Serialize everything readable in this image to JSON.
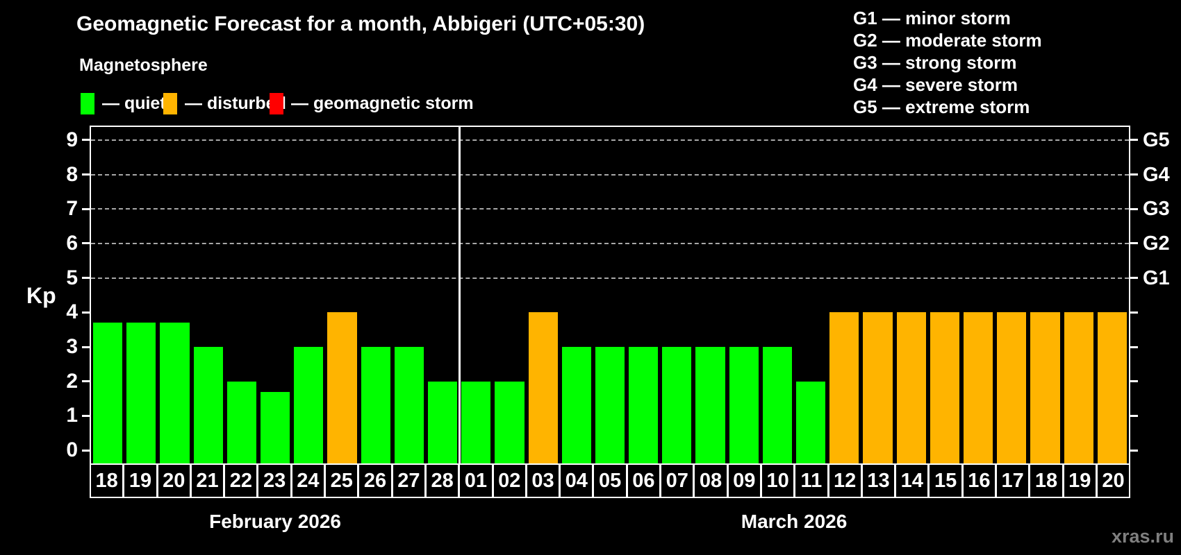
{
  "title": "Geomagnetic Forecast for a month, Abbigeri (UTC+05:30)",
  "subtitle": "Magnetosphere",
  "legend": {
    "items": [
      {
        "key": "quiet",
        "label": "— quiet",
        "color": "#00ff00"
      },
      {
        "key": "disturbed",
        "label": "— disturbed",
        "color": "#ffb400"
      },
      {
        "key": "storm",
        "label": "— geomagnetic storm",
        "color": "#ff0000"
      }
    ]
  },
  "storm_scale_legend": [
    "G1 — minor storm",
    "G2 — moderate storm",
    "G3 — strong storm",
    "G4 — severe storm",
    "G5 — extreme storm"
  ],
  "y_axis": {
    "label": "Kp",
    "ticks": [
      0,
      1,
      2,
      3,
      4,
      5,
      6,
      7,
      8,
      9
    ]
  },
  "right_axis": {
    "labels": [
      {
        "text": "G1",
        "kp": 5
      },
      {
        "text": "G2",
        "kp": 6
      },
      {
        "text": "G3",
        "kp": 7
      },
      {
        "text": "G4",
        "kp": 8
      },
      {
        "text": "G5",
        "kp": 9
      }
    ]
  },
  "watermark": "xras.ru",
  "chart_data": {
    "type": "bar",
    "title": "Geomagnetic Forecast for a month, Abbigeri (UTC+05:30)",
    "xlabel": "",
    "ylabel": "Kp",
    "ylim": [
      0,
      9.4
    ],
    "grid": "horizontal dashed lines at Kp 5,6,7,8,9 (storm levels G1-G5)",
    "legend_position": "top-left (status colors), top-right (G-scale definitions)",
    "status_colors": {
      "quiet": "#00ff00",
      "disturbed": "#ffb400",
      "storm": "#ff0000"
    },
    "months": [
      {
        "label": "February 2026",
        "bars": [
          {
            "day": "18",
            "kp": 3.7,
            "status": "quiet"
          },
          {
            "day": "19",
            "kp": 3.7,
            "status": "quiet"
          },
          {
            "day": "20",
            "kp": 3.7,
            "status": "quiet"
          },
          {
            "day": "21",
            "kp": 3.0,
            "status": "quiet"
          },
          {
            "day": "22",
            "kp": 2.0,
            "status": "quiet"
          },
          {
            "day": "23",
            "kp": 1.7,
            "status": "quiet"
          },
          {
            "day": "24",
            "kp": 3.0,
            "status": "quiet"
          },
          {
            "day": "25",
            "kp": 4.0,
            "status": "disturbed"
          },
          {
            "day": "26",
            "kp": 3.0,
            "status": "quiet"
          },
          {
            "day": "27",
            "kp": 3.0,
            "status": "quiet"
          },
          {
            "day": "28",
            "kp": 2.0,
            "status": "quiet"
          }
        ]
      },
      {
        "label": "March 2026",
        "bars": [
          {
            "day": "01",
            "kp": 2.0,
            "status": "quiet"
          },
          {
            "day": "02",
            "kp": 2.0,
            "status": "quiet"
          },
          {
            "day": "03",
            "kp": 4.0,
            "status": "disturbed"
          },
          {
            "day": "04",
            "kp": 3.0,
            "status": "quiet"
          },
          {
            "day": "05",
            "kp": 3.0,
            "status": "quiet"
          },
          {
            "day": "06",
            "kp": 3.0,
            "status": "quiet"
          },
          {
            "day": "07",
            "kp": 3.0,
            "status": "quiet"
          },
          {
            "day": "08",
            "kp": 3.0,
            "status": "quiet"
          },
          {
            "day": "09",
            "kp": 3.0,
            "status": "quiet"
          },
          {
            "day": "10",
            "kp": 3.0,
            "status": "quiet"
          },
          {
            "day": "11",
            "kp": 2.0,
            "status": "quiet"
          },
          {
            "day": "12",
            "kp": 4.0,
            "status": "disturbed"
          },
          {
            "day": "13",
            "kp": 4.0,
            "status": "disturbed"
          },
          {
            "day": "14",
            "kp": 4.0,
            "status": "disturbed"
          },
          {
            "day": "15",
            "kp": 4.0,
            "status": "disturbed"
          },
          {
            "day": "16",
            "kp": 4.0,
            "status": "disturbed"
          },
          {
            "day": "17",
            "kp": 4.0,
            "status": "disturbed"
          },
          {
            "day": "18",
            "kp": 4.0,
            "status": "disturbed"
          },
          {
            "day": "19",
            "kp": 4.0,
            "status": "disturbed"
          },
          {
            "day": "20",
            "kp": 4.0,
            "status": "disturbed"
          }
        ]
      }
    ]
  }
}
